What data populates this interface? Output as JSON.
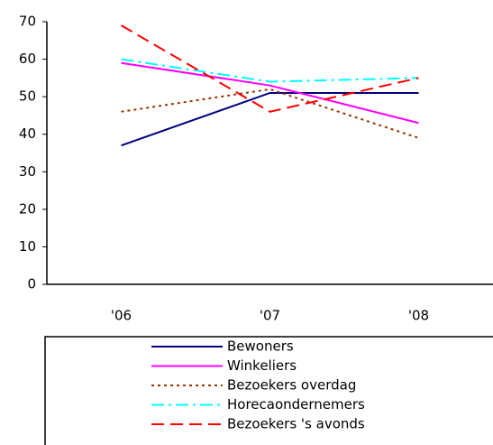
{
  "chart_data": {
    "type": "line",
    "categories": [
      "'06",
      "'07",
      "'08"
    ],
    "series": [
      {
        "name": "Bewoners",
        "color": "#000080",
        "dash": "solid",
        "values": [
          37,
          51,
          51
        ]
      },
      {
        "name": "Winkeliers",
        "color": "#ff00ff",
        "dash": "solid",
        "values": [
          59,
          53,
          43
        ]
      },
      {
        "name": "Bezoekers overdag",
        "color": "#993300",
        "dash": "dotted",
        "values": [
          46,
          52,
          39
        ]
      },
      {
        "name": "Horecaondernemers",
        "color": "#00ffff",
        "dash": "dashdot",
        "values": [
          60,
          54,
          55
        ]
      },
      {
        "name": "Bezoekers 's avonds",
        "color": "#ff0000",
        "dash": "dashed",
        "values": [
          69,
          46,
          55
        ]
      }
    ],
    "ylim": [
      0,
      70
    ],
    "yticks": [
      0,
      10,
      20,
      30,
      40,
      50,
      60,
      70
    ],
    "grid": false,
    "legend": "bottom"
  }
}
